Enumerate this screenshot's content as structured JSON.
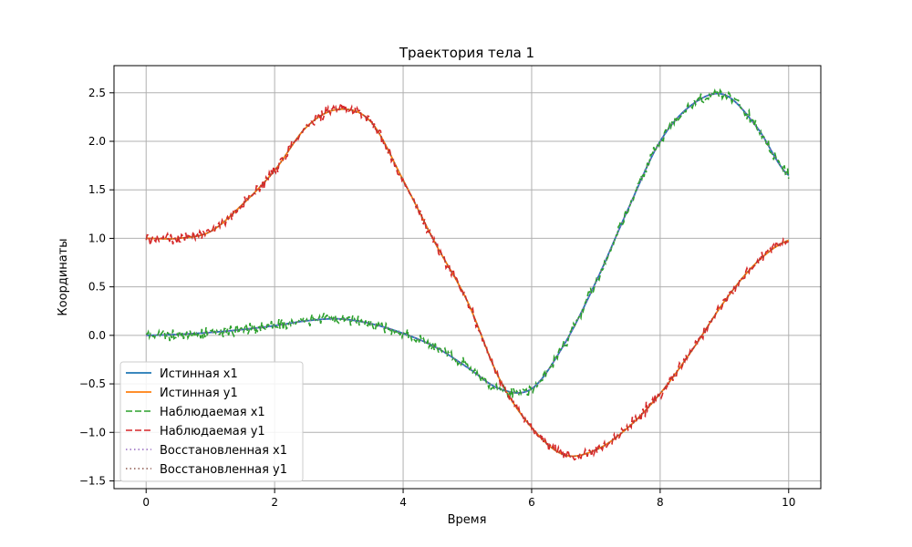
{
  "chart_data": {
    "type": "line",
    "title": "Траектория тела 1",
    "xlabel": "Время",
    "ylabel": "Координаты",
    "xlim": [
      -0.5,
      10.5
    ],
    "ylim": [
      -1.58,
      2.78
    ],
    "xticks": [
      0,
      2,
      4,
      6,
      8,
      10
    ],
    "yticks": [
      -1.5,
      -1.0,
      -0.5,
      0.0,
      0.5,
      1.0,
      1.5,
      2.0,
      2.5
    ],
    "xtick_labels": [
      "0",
      "2",
      "4",
      "6",
      "8",
      "10"
    ],
    "ytick_labels": [
      "−1.5",
      "−1.0",
      "−0.5",
      "0.0",
      "0.5",
      "1.0",
      "1.5",
      "2.0",
      "2.5"
    ],
    "grid": true,
    "legend_position": "lower-left",
    "x": [
      0,
      0.5,
      1.0,
      1.5,
      2.0,
      2.5,
      3.0,
      3.5,
      4.0,
      4.5,
      5.0,
      5.5,
      6.0,
      6.5,
      7.0,
      7.5,
      8.0,
      8.5,
      9.0,
      9.5,
      10.0
    ],
    "series": [
      {
        "name": "Истинная x1",
        "color": "#1f77b4",
        "style": "solid",
        "values": [
          0.0,
          0.01,
          0.03,
          0.06,
          0.1,
          0.15,
          0.17,
          0.12,
          0.02,
          -0.12,
          -0.33,
          -0.55,
          -0.55,
          -0.1,
          0.55,
          1.3,
          2.0,
          2.38,
          2.48,
          2.15,
          1.65
        ]
      },
      {
        "name": "Истинная y1",
        "color": "#ff7f0e",
        "style": "solid",
        "values": [
          1.0,
          1.0,
          1.07,
          1.35,
          1.7,
          2.15,
          2.33,
          2.2,
          1.6,
          0.95,
          0.35,
          -0.45,
          -0.95,
          -1.23,
          -1.18,
          -0.95,
          -0.6,
          -0.15,
          0.35,
          0.75,
          0.98
        ]
      },
      {
        "name": "Наблюдаемая x1",
        "color": "#2ca02c",
        "style": "dashed",
        "noise": 0.04,
        "values": [
          0.0,
          0.01,
          0.03,
          0.06,
          0.1,
          0.15,
          0.17,
          0.12,
          0.02,
          -0.12,
          -0.33,
          -0.55,
          -0.55,
          -0.1,
          0.55,
          1.3,
          2.0,
          2.38,
          2.48,
          2.15,
          1.65
        ]
      },
      {
        "name": "Наблюдаемая y1",
        "color": "#d62728",
        "style": "dashed",
        "noise": 0.04,
        "values": [
          1.0,
          1.0,
          1.07,
          1.35,
          1.7,
          2.15,
          2.33,
          2.2,
          1.6,
          0.95,
          0.35,
          -0.45,
          -0.95,
          -1.23,
          -1.18,
          -0.95,
          -0.6,
          -0.15,
          0.35,
          0.75,
          0.98
        ]
      },
      {
        "name": "Восстановленная x1",
        "color": "#9467bd",
        "style": "dotted",
        "values": [
          0.0,
          0.01,
          0.03,
          0.06,
          0.1,
          0.15,
          0.17,
          0.12,
          0.02,
          -0.12,
          -0.33,
          -0.55,
          -0.55,
          -0.1,
          0.55,
          1.3,
          2.0,
          2.38,
          2.48,
          2.15,
          1.65
        ]
      },
      {
        "name": "Восстановленная y1",
        "color": "#8c564b",
        "style": "dotted",
        "values": [
          1.0,
          1.0,
          1.07,
          1.35,
          1.7,
          2.15,
          2.33,
          2.2,
          1.6,
          0.95,
          0.35,
          -0.45,
          -0.95,
          -1.23,
          -1.18,
          -0.95,
          -0.6,
          -0.15,
          0.35,
          0.75,
          0.98
        ]
      }
    ]
  }
}
